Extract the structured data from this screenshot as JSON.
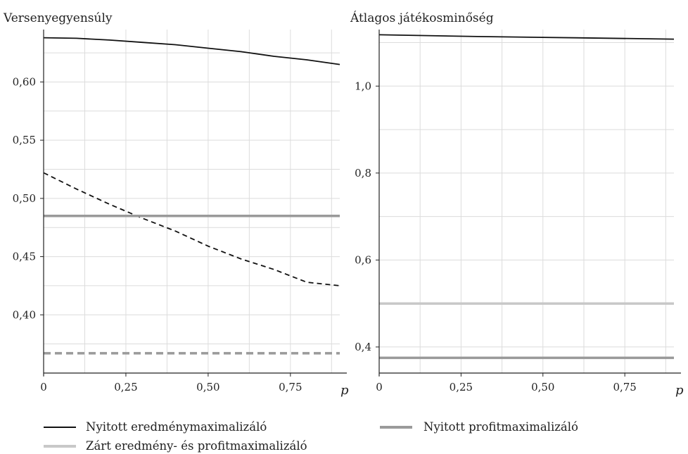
{
  "chart_data": [
    {
      "type": "line",
      "title": "Versenyegyensúly",
      "xlabel": "p",
      "ylabel": "",
      "xlim": [
        0,
        0.9
      ],
      "ylim": [
        0.35,
        0.645
      ],
      "x_ticks": [
        {
          "value": 0,
          "label": "0"
        },
        {
          "value": 0.25,
          "label": "0,25"
        },
        {
          "value": 0.5,
          "label": "0,50"
        },
        {
          "value": 0.75,
          "label": "0,75"
        }
      ],
      "y_ticks": [
        {
          "value": 0.4,
          "label": "0,40"
        },
        {
          "value": 0.45,
          "label": "0,45"
        },
        {
          "value": 0.5,
          "label": "0,50"
        },
        {
          "value": 0.55,
          "label": "0,55"
        },
        {
          "value": 0.6,
          "label": "0,60"
        }
      ],
      "grid": true,
      "series": [
        {
          "key": "nyitott_eredmeny",
          "color": "#111111",
          "dash": "solid",
          "x": [
            0,
            0.1,
            0.2,
            0.3,
            0.4,
            0.5,
            0.6,
            0.7,
            0.8,
            0.9
          ],
          "y": [
            0.638,
            0.6375,
            0.636,
            0.634,
            0.632,
            0.629,
            0.626,
            0.622,
            0.619,
            0.615
          ]
        },
        {
          "key": "zart_eredmeny",
          "color": "#111111",
          "dash": "dashed",
          "x": [
            0,
            0.1,
            0.2,
            0.3,
            0.4,
            0.5,
            0.6,
            0.7,
            0.8,
            0.9
          ],
          "y": [
            0.522,
            0.508,
            0.495,
            0.483,
            0.472,
            0.459,
            0.448,
            0.439,
            0.428,
            0.425
          ]
        },
        {
          "key": "nyitott_profit",
          "color": "#9a9a9a",
          "dash": "solid",
          "x": [
            0,
            0.9
          ],
          "y": [
            0.485,
            0.485
          ]
        },
        {
          "key": "zart_profit",
          "color": "#9a9a9a",
          "dash": "dashed",
          "x": [
            0,
            0.9
          ],
          "y": [
            0.367,
            0.367
          ]
        }
      ]
    },
    {
      "type": "line",
      "title": "Átlagos játékosminőség",
      "xlabel": "p",
      "ylabel": "",
      "xlim": [
        0,
        0.9
      ],
      "ylim": [
        0.34,
        1.13
      ],
      "x_ticks": [
        {
          "value": 0,
          "label": "0"
        },
        {
          "value": 0.25,
          "label": "0,25"
        },
        {
          "value": 0.5,
          "label": "0,50"
        },
        {
          "value": 0.75,
          "label": "0,75"
        }
      ],
      "y_ticks": [
        {
          "value": 0.4,
          "label": "0,4"
        },
        {
          "value": 0.6,
          "label": "0,6"
        },
        {
          "value": 0.8,
          "label": "0,8"
        },
        {
          "value": 1.0,
          "label": "1,0"
        }
      ],
      "grid": true,
      "series": [
        {
          "key": "nyitott_eredmeny",
          "color": "#111111",
          "dash": "solid",
          "x": [
            0,
            0.3,
            0.6,
            0.9
          ],
          "y": [
            1.118,
            1.114,
            1.111,
            1.108
          ]
        },
        {
          "key": "zart_mindketto",
          "color": "#c8c8c8",
          "dash": "solid",
          "x": [
            0,
            0.9
          ],
          "y": [
            0.5,
            0.5
          ]
        },
        {
          "key": "nyitott_profit",
          "color": "#9a9a9a",
          "dash": "solid",
          "x": [
            0,
            0.9
          ],
          "y": [
            0.375,
            0.375
          ]
        }
      ]
    }
  ],
  "legend": [
    {
      "label": "Nyitott eredménymaximalizáló",
      "color": "#111111"
    },
    {
      "label": "Nyitott profitmaximalizáló",
      "color": "#9a9a9a"
    },
    {
      "label": "Zárt eredmény- és profitmaximalizáló",
      "color": "#c8c8c8"
    }
  ]
}
